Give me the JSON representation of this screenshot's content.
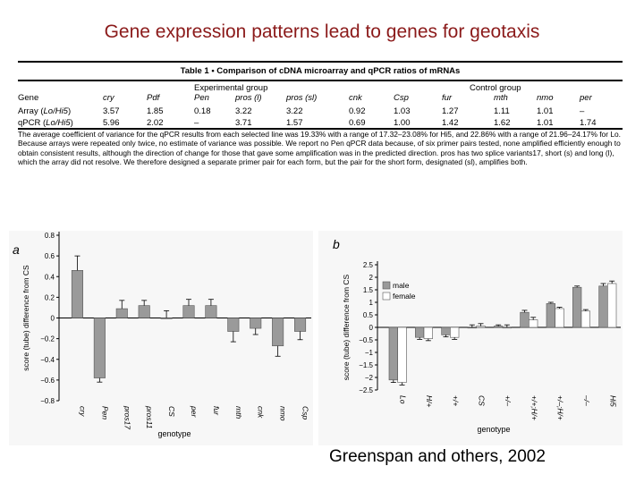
{
  "slide": {
    "title": "Gene expression patterns lead to genes for geotaxis",
    "credit": "Greenspan and others, 2002"
  },
  "table": {
    "caption": "Table 1 • Comparison of cDNA microarray and qPCR ratios of mRNAs",
    "group_experimental": "Experimental group",
    "group_control": "Control group",
    "columns": [
      "Gene",
      "cry",
      "Pdf",
      "Pen",
      "pros (l)",
      "pros (sl)",
      "cnk",
      "Csp",
      "fur",
      "mth",
      "nmo",
      "per"
    ],
    "rows": [
      {
        "label": "Array (Lo/Hi5)",
        "values": [
          "3.57",
          "1.85",
          "0.18",
          "3.22",
          "3.22",
          "0.92",
          "1.03",
          "1.27",
          "1.11",
          "1.01",
          "–"
        ]
      },
      {
        "label": "qPCR (Lo/Hi5)",
        "values": [
          "5.96",
          "2.02",
          "–",
          "3.71",
          "1.57",
          "0.69",
          "1.00",
          "1.42",
          "1.62",
          "1.01",
          "1.74"
        ]
      }
    ],
    "footnote": "The average coefficient of variance for the qPCR results from each selected line was 19.33% with a range of 17.32–23.08% for Hi5, and 22.86% with a range of 21.96–24.17% for Lo. Because arrays were repeated only twice, no estimate of variance was possible. We report no Pen qPCR data because, of six primer pairs tested, none amplified efficiently enough to obtain consistent results, although the direction of change for those that gave some amplification was in the predicted direction. pros has two splice variants17, short (s) and long (l), which the array did not resolve. We therefore designed a separate primer pair for each form, but the pair for the short form, designated (sl), amplifies both."
  },
  "chart_data": [
    {
      "type": "bar",
      "panel_label": "a",
      "categories": [
        "cry",
        "Pen",
        "pros17",
        "pros11",
        "CS",
        "per",
        "fur",
        "mth",
        "cnk",
        "nmo",
        "Csp"
      ],
      "values": [
        0.46,
        -0.58,
        0.09,
        0.12,
        0.0,
        0.12,
        0.12,
        -0.13,
        -0.1,
        -0.27,
        -0.13
      ],
      "errors": [
        0.14,
        0.04,
        0.08,
        0.05,
        0.07,
        0.06,
        0.06,
        0.1,
        0.06,
        0.1,
        0.08
      ],
      "ylabel": "score (tube) difference from CS",
      "xlabel": "genotype",
      "ylim": [
        -0.8,
        0.8
      ],
      "yticks": [
        "0.8",
        "0.6",
        "0.4",
        "0.2",
        "0",
        "−0.2",
        "−0.4",
        "−0.6",
        "−0.8"
      ],
      "bar_color": "#9a9a9a"
    },
    {
      "type": "bar",
      "panel_label": "b",
      "categories": [
        "Lo",
        "H/+",
        "+/+",
        "CS",
        "+/–",
        "+/+;H/+",
        "+/–;H/+",
        "–/–",
        "Hi5"
      ],
      "series": [
        {
          "name": "male",
          "values": [
            -2.1,
            -0.4,
            -0.3,
            0.0,
            0.05,
            0.6,
            0.95,
            1.6,
            1.65
          ],
          "errors": [
            0.1,
            0.08,
            0.08,
            0.1,
            0.05,
            0.08,
            0.05,
            0.05,
            0.1
          ]
        },
        {
          "name": "female",
          "values": [
            -2.2,
            -0.45,
            -0.4,
            0.05,
            0.0,
            0.3,
            0.75,
            0.65,
            1.75
          ],
          "errors": [
            0.1,
            0.08,
            0.08,
            0.1,
            0.1,
            0.1,
            0.05,
            0.06,
            0.1
          ]
        }
      ],
      "ylabel": "score (tube) difference from CS",
      "xlabel": "genotype",
      "ylim": [
        -2.5,
        2.5
      ],
      "yticks": [
        "2.5",
        "2",
        "1.5",
        "1",
        "0.5",
        "0",
        "−0.5",
        "−1",
        "−1.5",
        "−2",
        "−2.5"
      ],
      "legend": "upper-left",
      "colors": {
        "male": "#9a9a9a",
        "female": "#ffffff"
      }
    }
  ]
}
